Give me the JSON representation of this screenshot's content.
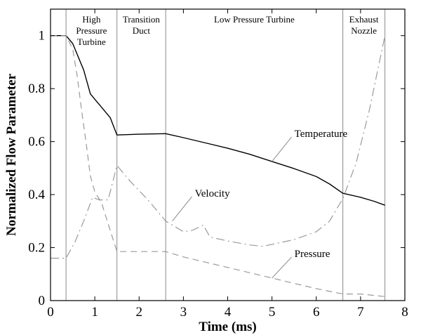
{
  "chart_data": {
    "type": "line",
    "title": "",
    "xlabel": "Time (ms)",
    "ylabel": "Normalized Flow Parameter",
    "xlim": [
      0,
      8
    ],
    "ylim": [
      0,
      1.1
    ],
    "xticks": [
      0,
      1,
      2,
      3,
      4,
      5,
      6,
      7,
      8
    ],
    "xtick_labels": [
      "0",
      "1",
      "2",
      "3",
      "4",
      "5",
      "6",
      "7",
      "8"
    ],
    "yticks": [
      0,
      0.2,
      0.4,
      0.6,
      0.8,
      1.0
    ],
    "ytick_labels": [
      "0",
      "0.2",
      "0.4",
      "0.6",
      "0.8",
      "1"
    ],
    "grid": false,
    "regions": [
      {
        "lines": [
          "High",
          "Pressure",
          "Turbine"
        ],
        "x_start": 0.35,
        "x_end": 1.5
      },
      {
        "lines": [
          "Transition",
          "Duct"
        ],
        "x_start": 1.5,
        "x_end": 2.6
      },
      {
        "lines": [
          "Low Pressure Turbine"
        ],
        "x_start": 2.6,
        "x_end": 6.6
      },
      {
        "lines": [
          "Exhaust",
          "Nozzle"
        ],
        "x_start": 6.6,
        "x_end": 7.55
      }
    ],
    "series": [
      {
        "name": "Temperature",
        "style": "solid",
        "color": "#000000",
        "points": [
          [
            0,
            1.0
          ],
          [
            0.35,
            1.0
          ],
          [
            0.5,
            0.97
          ],
          [
            0.6,
            0.93
          ],
          [
            0.75,
            0.87
          ],
          [
            0.9,
            0.78
          ],
          [
            1.0,
            0.76
          ],
          [
            1.15,
            0.73
          ],
          [
            1.35,
            0.69
          ],
          [
            1.5,
            0.625
          ],
          [
            2.0,
            0.628
          ],
          [
            2.6,
            0.63
          ],
          [
            3.0,
            0.615
          ],
          [
            3.5,
            0.595
          ],
          [
            4.0,
            0.575
          ],
          [
            4.5,
            0.552
          ],
          [
            5.0,
            0.525
          ],
          [
            5.5,
            0.498
          ],
          [
            6.0,
            0.468
          ],
          [
            6.3,
            0.44
          ],
          [
            6.6,
            0.405
          ],
          [
            7.0,
            0.39
          ],
          [
            7.3,
            0.375
          ],
          [
            7.55,
            0.36
          ]
        ]
      },
      {
        "name": "Velocity",
        "style": "dashdot",
        "color": "#9a9a9a",
        "points": [
          [
            0,
            0.16
          ],
          [
            0.35,
            0.16
          ],
          [
            0.55,
            0.22
          ],
          [
            0.75,
            0.3
          ],
          [
            0.95,
            0.39
          ],
          [
            1.1,
            0.38
          ],
          [
            1.3,
            0.38
          ],
          [
            1.5,
            0.51
          ],
          [
            1.8,
            0.45
          ],
          [
            2.2,
            0.38
          ],
          [
            2.6,
            0.3
          ],
          [
            3.0,
            0.26
          ],
          [
            3.2,
            0.265
          ],
          [
            3.45,
            0.285
          ],
          [
            3.6,
            0.24
          ],
          [
            4.0,
            0.225
          ],
          [
            4.5,
            0.21
          ],
          [
            4.8,
            0.205
          ],
          [
            5.5,
            0.23
          ],
          [
            6.0,
            0.26
          ],
          [
            6.3,
            0.3
          ],
          [
            6.6,
            0.385
          ],
          [
            6.9,
            0.52
          ],
          [
            7.2,
            0.72
          ],
          [
            7.55,
            1.0
          ]
        ]
      },
      {
        "name": "Pressure",
        "style": "dashed",
        "color": "#9a9a9a",
        "points": [
          [
            0,
            1.0
          ],
          [
            0.35,
            1.0
          ],
          [
            0.5,
            0.95
          ],
          [
            0.6,
            0.85
          ],
          [
            0.7,
            0.72
          ],
          [
            0.8,
            0.6
          ],
          [
            0.9,
            0.47
          ],
          [
            1.0,
            0.41
          ],
          [
            1.15,
            0.37
          ],
          [
            1.3,
            0.29
          ],
          [
            1.5,
            0.185
          ],
          [
            2.0,
            0.185
          ],
          [
            2.6,
            0.185
          ],
          [
            3.0,
            0.165
          ],
          [
            3.5,
            0.145
          ],
          [
            4.0,
            0.125
          ],
          [
            4.5,
            0.105
          ],
          [
            5.0,
            0.085
          ],
          [
            5.5,
            0.065
          ],
          [
            6.0,
            0.045
          ],
          [
            6.6,
            0.025
          ],
          [
            7.0,
            0.025
          ],
          [
            7.55,
            0.015
          ]
        ]
      }
    ],
    "annotations": [
      {
        "text": "Temperature",
        "target": [
          5.0,
          0.525
        ]
      },
      {
        "text": "Velocity",
        "target": [
          2.75,
          0.3
        ]
      },
      {
        "text": "Pressure",
        "target": [
          5.0,
          0.085
        ]
      }
    ]
  }
}
